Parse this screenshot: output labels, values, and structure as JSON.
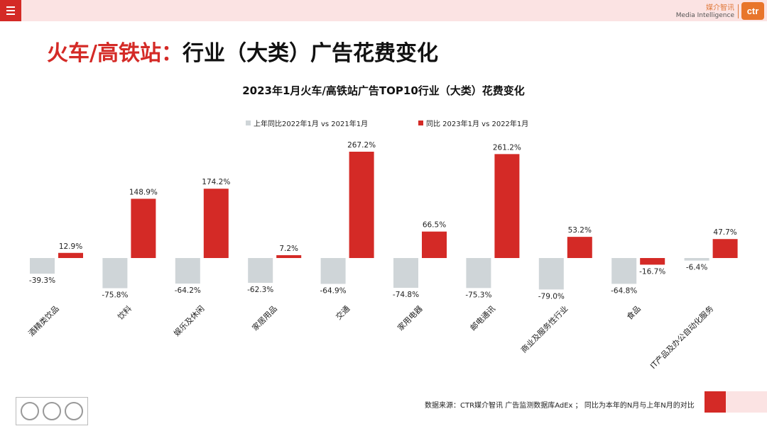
{
  "header": {
    "brand_cn": "媒介智讯",
    "brand_en": "Media Intelligence",
    "logo_text": "ctr"
  },
  "page_title": {
    "red_part": "火车/高铁站：",
    "black_part": "行业（大类）广告花费变化"
  },
  "chart_data": {
    "type": "bar",
    "title": "2023年1月火车/高铁站广告TOP10行业（大类）花费变化",
    "legend_position": "top",
    "categories": [
      "酒精类饮品",
      "饮料",
      "娱乐及休闲",
      "家居用品",
      "交通",
      "家用电器",
      "邮电通讯",
      "商业及服务性行业",
      "食品",
      "IT产品及办公自动化服务"
    ],
    "series": [
      {
        "name": "上年同比2022年1月  vs  2021年1月",
        "color": "#cfd5d8",
        "values": [
          -39.3,
          -75.8,
          -64.2,
          -62.3,
          -64.9,
          -74.8,
          -75.3,
          -79.0,
          -64.8,
          -6.4
        ],
        "labels": [
          "-39.3%",
          "-75.8%",
          "-64.2%",
          "-62.3%",
          "-64.9%",
          "-74.8%",
          "-75.3%",
          "-79.0%",
          "-64.8%",
          "-6.4%"
        ]
      },
      {
        "name": "同比 2023年1月  vs  2022年1月",
        "color": "#d42a26",
        "values": [
          12.9,
          148.9,
          174.2,
          7.2,
          267.2,
          66.5,
          261.2,
          53.2,
          -16.7,
          47.7
        ],
        "labels": [
          "12.9%",
          "148.9%",
          "174.2%",
          "7.2%",
          "267.2%",
          "66.5%",
          "261.2%",
          "53.2%",
          "-16.7%",
          "47.7%"
        ]
      }
    ],
    "ylim": [
      -90,
      280
    ],
    "grid": false,
    "xlabel": "",
    "ylabel": ""
  },
  "footer": {
    "source": "数据来源：CTR媒介智讯 广告监测数据库AdEx ；  同比为本年的N月与上年N月的对比"
  },
  "colors": {
    "accent": "#d42a26",
    "pink": "#fbe3e3",
    "grey_bar": "#cfd5d8",
    "logo": "#e8752b"
  }
}
